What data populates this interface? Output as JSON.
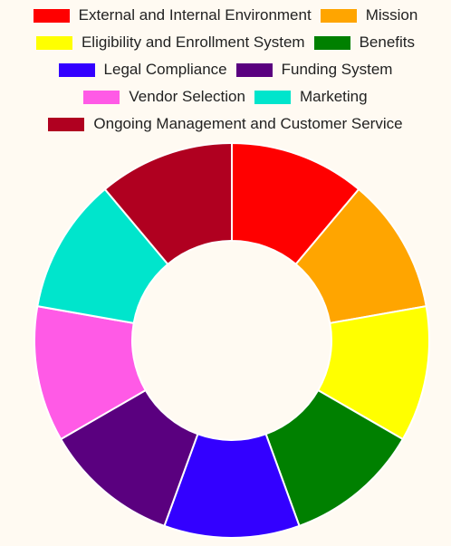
{
  "chart_data": {
    "type": "pie",
    "style": "donut",
    "legend_position": "top",
    "categories": [
      "External and Internal Environment",
      "Mission",
      "Eligibility and Enrollment System",
      "Benefits",
      "Legal Compliance",
      "Funding System",
      "Vendor Selection",
      "Marketing",
      "Ongoing Management and Customer Service"
    ],
    "values": [
      1,
      1,
      1,
      1,
      1,
      1,
      1,
      1,
      1
    ],
    "colors": [
      "#ff0000",
      "#ffa500",
      "#ffff00",
      "#008000",
      "#3300ff",
      "#5a007f",
      "#ff5ae6",
      "#00e5cc",
      "#b00020"
    ]
  }
}
